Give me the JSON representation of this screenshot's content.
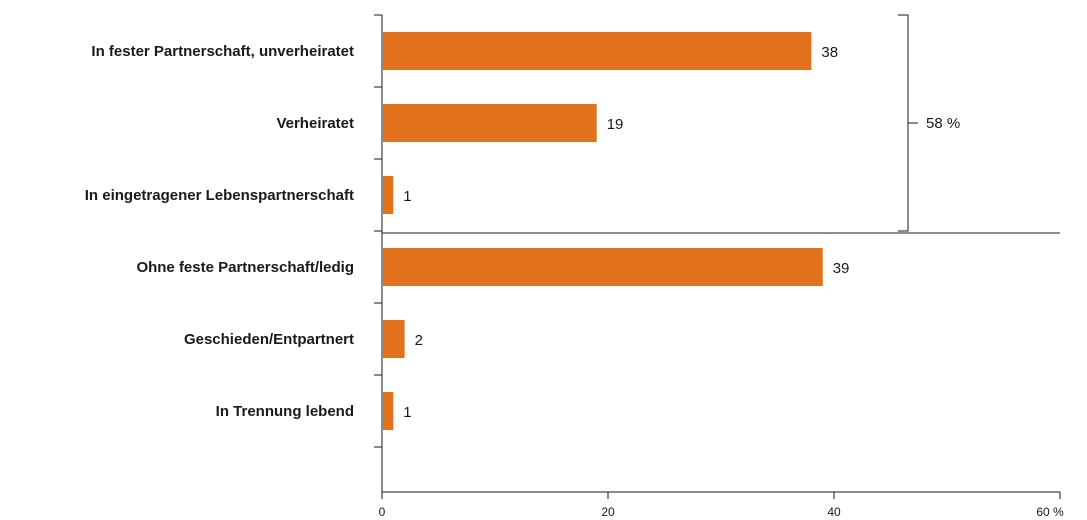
{
  "chart_data": {
    "type": "bar",
    "orientation": "horizontal",
    "categories": [
      "In fester Partnerschaft, unverheiratet",
      "Verheiratet",
      "In eingetragener Lebenspartnerschaft",
      "Ohne feste Partnerschaft/ledig",
      "Geschieden/Entpartnert",
      "In Trennung lebend"
    ],
    "values": [
      38,
      19,
      1,
      39,
      2,
      1
    ],
    "value_labels": [
      "38",
      "19",
      "1",
      "39",
      "2",
      "1"
    ],
    "xlim": [
      0,
      60
    ],
    "x_ticks": [
      0,
      20,
      40,
      60
    ],
    "x_tick_labels": [
      "0",
      "20",
      "40",
      "60 %"
    ],
    "bar_color": "#e2711d",
    "group_bracket": {
      "label": "58 %",
      "from_index": 0,
      "to_index": 2
    },
    "separator_after_index": 2,
    "grid": false
  }
}
